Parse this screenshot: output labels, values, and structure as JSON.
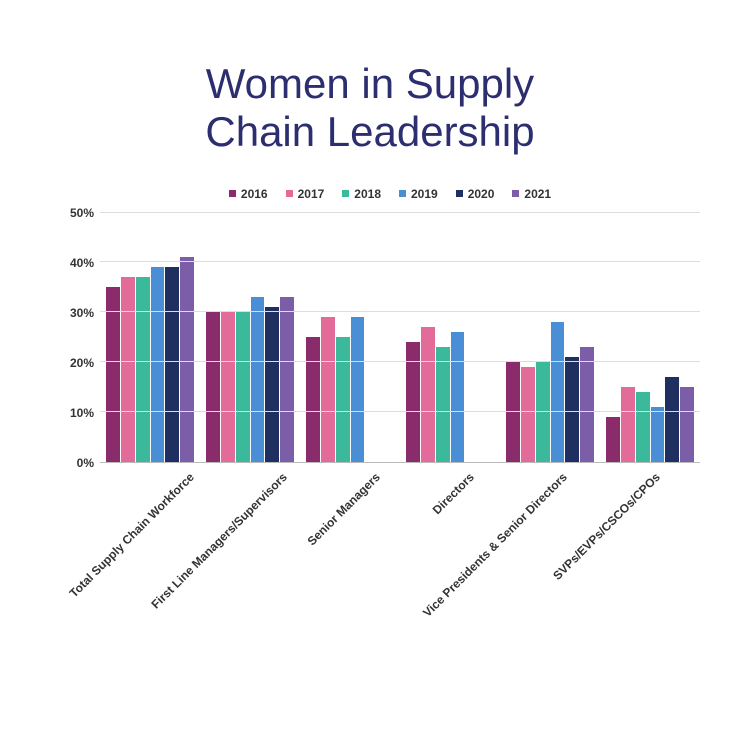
{
  "title": {
    "line1": "Women in Supply",
    "line2": "Chain Leadership",
    "color": "#2d2e6f",
    "fontsize": 42
  },
  "chart": {
    "type": "bar",
    "background_color": "#ffffff",
    "grid_color": "#dddddd",
    "axis_color": "#bbbbbb",
    "ylim": [
      0,
      50
    ],
    "ytick_step": 10,
    "ylabel_format_suffix": "%",
    "series": [
      {
        "name": "2016",
        "color": "#8a2b6b"
      },
      {
        "name": "2017",
        "color": "#e26b9a"
      },
      {
        "name": "2018",
        "color": "#3bb99b"
      },
      {
        "name": "2019",
        "color": "#4a8fd6"
      },
      {
        "name": "2020",
        "color": "#1f2f5f"
      },
      {
        "name": "2021",
        "color": "#7b5da8"
      }
    ],
    "categories": [
      "Total Supply Chain Workforce",
      "First Line Managers/Supervisors",
      "Senior Managers",
      "Directors",
      "Vice Presidents & Senior Directors",
      "SVPs/EVPs/CSCOs/CPOs"
    ],
    "values": [
      [
        35,
        37,
        37,
        39,
        39,
        41
      ],
      [
        30,
        30,
        30,
        33,
        31,
        33
      ],
      [
        25,
        29,
        25,
        29,
        0,
        0
      ],
      [
        24,
        27,
        23,
        26,
        0,
        0
      ],
      [
        20,
        19,
        20,
        28,
        21,
        23
      ],
      [
        9,
        15,
        14,
        11,
        17,
        15
      ]
    ],
    "label_fontsize": 12,
    "label_color": "#333333"
  }
}
